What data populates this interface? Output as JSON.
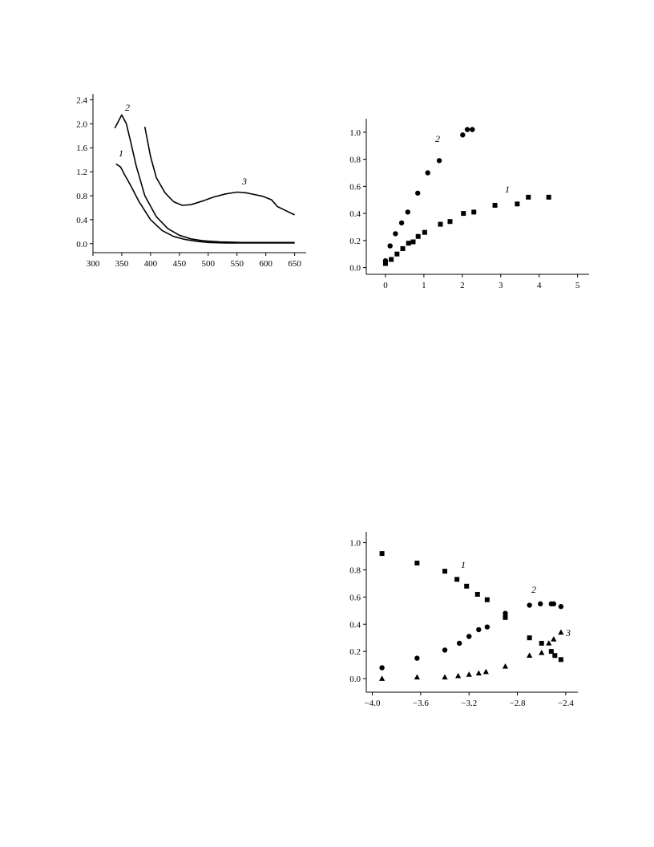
{
  "chart_data": [
    {
      "type": "line",
      "title": "",
      "xlabel": "",
      "ylabel": "",
      "xlim": [
        300,
        670
      ],
      "ylim": [
        -0.15,
        2.5
      ],
      "xticks": [
        "300",
        "350",
        "400",
        "450",
        "500",
        "550",
        "600",
        "650"
      ],
      "yticks": [
        "0.0",
        "0.4",
        "0.8",
        "1.2",
        "1.6",
        "2.0",
        "2.4"
      ],
      "grid": false,
      "series": [
        {
          "name": "1",
          "x": [
            340,
            348,
            355,
            365,
            380,
            400,
            420,
            440,
            460,
            480,
            500,
            530,
            560,
            600,
            650
          ],
          "y": [
            1.33,
            1.28,
            1.15,
            0.98,
            0.7,
            0.4,
            0.22,
            0.12,
            0.07,
            0.04,
            0.02,
            0.01,
            0.01,
            0.01,
            0.01
          ]
        },
        {
          "name": "2",
          "x": [
            338,
            350,
            358,
            365,
            375,
            390,
            410,
            430,
            450,
            470,
            490,
            520,
            560,
            600,
            650
          ],
          "y": [
            1.93,
            2.15,
            2.0,
            1.72,
            1.3,
            0.8,
            0.45,
            0.25,
            0.14,
            0.08,
            0.05,
            0.03,
            0.02,
            0.02,
            0.02
          ]
        },
        {
          "name": "3",
          "x": [
            390,
            400,
            410,
            425,
            440,
            455,
            470,
            490,
            510,
            530,
            550,
            565,
            580,
            595,
            610,
            620,
            635,
            650
          ],
          "y": [
            1.95,
            1.45,
            1.1,
            0.85,
            0.7,
            0.64,
            0.65,
            0.71,
            0.78,
            0.83,
            0.86,
            0.85,
            0.82,
            0.79,
            0.73,
            0.62,
            0.55,
            0.48
          ]
        }
      ]
    },
    {
      "type": "scatter",
      "title": "",
      "xlabel": "",
      "ylabel": "",
      "xlim": [
        -0.5,
        5.3
      ],
      "ylim": [
        -0.05,
        1.1
      ],
      "xticks": [
        "0",
        "1",
        "2",
        "3",
        "4",
        "5"
      ],
      "yticks": [
        "0.0",
        "0.2",
        "0.4",
        "0.6",
        "0.8",
        "1.0"
      ],
      "grid": false,
      "series": [
        {
          "name": "1",
          "marker": "square",
          "x": [
            0,
            0.15,
            0.3,
            0.45,
            0.6,
            0.72,
            0.85,
            1.02,
            1.43,
            1.68,
            2.03,
            2.3,
            2.85,
            3.43,
            3.72,
            4.25
          ],
          "y": [
            0.03,
            0.06,
            0.1,
            0.14,
            0.18,
            0.19,
            0.23,
            0.26,
            0.32,
            0.34,
            0.4,
            0.41,
            0.46,
            0.47,
            0.52,
            0.52
          ]
        },
        {
          "name": "2",
          "marker": "circle",
          "x": [
            0,
            0.12,
            0.26,
            0.42,
            0.58,
            0.84,
            1.1,
            1.4,
            2.01,
            2.13,
            2.26
          ],
          "y": [
            0.05,
            0.16,
            0.25,
            0.33,
            0.41,
            0.55,
            0.7,
            0.79,
            0.98,
            1.02,
            1.02
          ]
        }
      ]
    },
    {
      "type": "scatter",
      "title": "",
      "xlabel": "",
      "ylabel": "",
      "xlim": [
        -4.05,
        -2.3
      ],
      "ylim": [
        -0.1,
        1.08
      ],
      "xticks": [
        "−4.0",
        "−3.6",
        "−3.2",
        "−2.8",
        "−2.4"
      ],
      "yticks": [
        "0.0",
        "0.2",
        "0.4",
        "0.6",
        "0.8",
        "1.0"
      ],
      "grid": false,
      "series": [
        {
          "name": "1",
          "marker": "square",
          "x": [
            -3.92,
            -3.63,
            -3.4,
            -3.3,
            -3.22,
            -3.13,
            -3.05,
            -2.9,
            -2.7,
            -2.6,
            -2.52,
            -2.49,
            -2.44
          ],
          "y": [
            0.92,
            0.85,
            0.79,
            0.73,
            0.68,
            0.62,
            0.58,
            0.45,
            0.3,
            0.26,
            0.2,
            0.17,
            0.14
          ]
        },
        {
          "name": "2",
          "marker": "circle",
          "x": [
            -3.92,
            -3.63,
            -3.4,
            -3.28,
            -3.2,
            -3.12,
            -3.05,
            -2.9,
            -2.7,
            -2.61,
            -2.52,
            -2.5,
            -2.44
          ],
          "y": [
            0.08,
            0.15,
            0.21,
            0.26,
            0.31,
            0.36,
            0.38,
            0.48,
            0.54,
            0.55,
            0.55,
            0.55,
            0.53
          ]
        },
        {
          "name": "3",
          "marker": "triangle",
          "x": [
            -3.92,
            -3.63,
            -3.4,
            -3.29,
            -3.2,
            -3.12,
            -3.06,
            -2.9,
            -2.7,
            -2.6,
            -2.54,
            -2.5,
            -2.44
          ],
          "y": [
            0.0,
            0.01,
            0.01,
            0.02,
            0.03,
            0.04,
            0.05,
            0.09,
            0.17,
            0.19,
            0.26,
            0.29,
            0.34
          ]
        }
      ]
    }
  ]
}
